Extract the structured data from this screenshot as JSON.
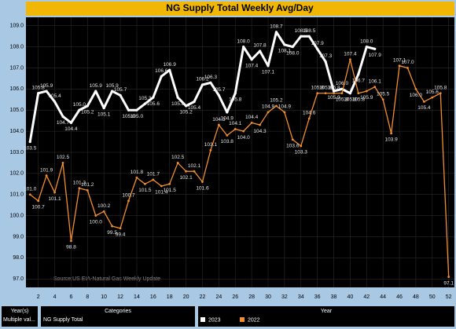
{
  "chart_data": {
    "type": "line",
    "title": "NG Supply Total Weekly Avg/Day",
    "annotation": "Source:US EIA-Natural Gas Weekly Update",
    "x": [
      1,
      2,
      3,
      4,
      5,
      6,
      7,
      8,
      9,
      10,
      11,
      12,
      13,
      14,
      15,
      16,
      17,
      18,
      19,
      20,
      21,
      22,
      23,
      24,
      25,
      26,
      27,
      28,
      29,
      30,
      31,
      32,
      33,
      34,
      35,
      36,
      37,
      38,
      39,
      40,
      41,
      42,
      43,
      44,
      45,
      46,
      47,
      48,
      49,
      50,
      51,
      52
    ],
    "series": [
      {
        "name": "2023",
        "color": "#ffffff",
        "width": 3,
        "values": [
          103.5,
          105.8,
          105.9,
          105.4,
          104.7,
          104.4,
          105.0,
          105.2,
          105.9,
          105.1,
          105.9,
          105.7,
          105.0,
          105.0,
          105.3,
          105.6,
          106.6,
          106.9,
          105.6,
          105.2,
          105.4,
          106.2,
          106.3,
          105.7,
          104.9,
          105.8,
          108.0,
          107.4,
          107.8,
          107.1,
          108.7,
          108.1,
          108.0,
          108.5,
          108.5,
          107.9,
          107.3,
          105.9,
          106.0,
          105.8,
          106.7,
          108.0,
          107.9,
          null,
          null,
          null,
          null,
          null,
          null,
          null,
          null,
          null
        ],
        "value_labels": [
          "103.5",
          "105.8",
          "105.9",
          "105.4",
          "104.7",
          "104.4",
          "105.0",
          "105.2",
          "105.9",
          "105.1",
          "105.9",
          "105.7",
          "105.0",
          "105.0",
          "105.3",
          "105.6",
          "106.6",
          "106.9",
          "105.6",
          "105.2",
          "105.4",
          "106.2",
          "106.3",
          "105.7",
          "104.9",
          "105.8",
          "108.0",
          "107.4",
          "107.8",
          "107.1",
          "108.7",
          "108.1",
          "108.0",
          "108.5",
          "108.5",
          "107.9",
          "107.3",
          "105.9",
          "106.0",
          "105.8",
          "106.7",
          "108.0",
          "107.9",
          null,
          null,
          null,
          null,
          null,
          null,
          null,
          null,
          null
        ]
      },
      {
        "name": "2022",
        "color": "#f28e2b",
        "width": 1.3,
        "values": [
          101.0,
          100.7,
          101.9,
          101.1,
          102.5,
          98.8,
          101.3,
          101.2,
          100.0,
          100.2,
          99.5,
          99.4,
          100.7,
          101.8,
          101.5,
          101.7,
          101.4,
          101.5,
          102.5,
          102.1,
          102.1,
          101.6,
          103.1,
          104.3,
          103.8,
          104.1,
          104.0,
          104.4,
          104.3,
          104.9,
          105.2,
          104.9,
          103.6,
          103.3,
          104.6,
          105.8,
          105.8,
          105.8,
          105.8,
          107.4,
          105.8,
          105.9,
          106.1,
          105.5,
          103.9,
          107.1,
          107.0,
          106.0,
          105.4,
          105.6,
          105.8,
          97.1
        ],
        "value_labels": [
          "101.0",
          "100.7",
          "101.9",
          "101.1",
          "102.5",
          "98.8",
          "101.3",
          "101.2",
          "100.0",
          "100.2",
          "99.5",
          "99.4",
          "100.7",
          "101.8",
          "101.5",
          "101.7",
          "101.4",
          "101.5",
          "102.5",
          "102.1",
          "102.1",
          "101.6",
          "103.1",
          "104.3",
          "103.8",
          "104.1",
          "104.0",
          "104.4",
          "104.3",
          "104.9",
          "105.2",
          "104.9",
          "103.6",
          "103.3",
          "104.6",
          "105.8",
          "105.8",
          "105.8",
          "105.8",
          "107.4",
          "105.8",
          "105.9",
          "106.1",
          "105.5",
          "103.9",
          "107.1",
          "107.0",
          "106.0",
          "105.4",
          "105.6",
          "105.8",
          "97.1"
        ]
      }
    ],
    "xlim": [
      0.5,
      52.7
    ],
    "xticks": [
      2,
      4,
      6,
      8,
      10,
      12,
      14,
      16,
      18,
      20,
      22,
      24,
      26,
      28,
      30,
      32,
      34,
      36,
      38,
      40,
      42,
      44,
      46,
      48,
      50,
      52
    ],
    "ylim": [
      96.6,
      109.4
    ],
    "yticks": [
      {
        "value": 97,
        "label": "97.0"
      },
      {
        "value": 98,
        "label": "98.0"
      },
      {
        "value": 99,
        "label": "99.0"
      },
      {
        "value": 100,
        "label": "100.0"
      },
      {
        "value": 101,
        "label": "101.0"
      },
      {
        "value": 102,
        "label": "102.0"
      },
      {
        "value": 103,
        "label": "103.0"
      },
      {
        "value": 104,
        "label": "104.0"
      },
      {
        "value": 105,
        "label": "105.0"
      },
      {
        "value": 106,
        "label": "106.0"
      },
      {
        "value": 107,
        "label": "107.0"
      },
      {
        "value": 108,
        "label": "108.0"
      },
      {
        "value": 109,
        "label": "109.0"
      }
    ],
    "grid": true
  },
  "filters": {
    "years_title": "Year(s)",
    "years_value": "Multiple val...",
    "categories_title": "Categories",
    "categories_value": "NG Supply Total",
    "legend_title": "Year"
  }
}
